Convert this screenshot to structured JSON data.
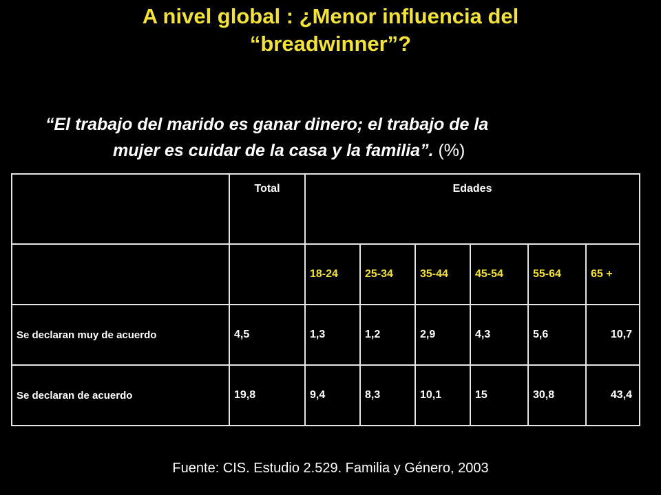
{
  "slide": {
    "title": "A nivel global : ¿Menor influencia del “breadwinner”?",
    "quote": "“El trabajo del marido es ganar dinero; el trabajo de la",
    "quote_line2": "mujer es cuidar de la casa y la familia”.",
    "quote_suffix": " (%)",
    "source": "Fuente: CIS. Estudio 2.529. Familia y Género, 2003"
  },
  "table": {
    "header_total": "Total",
    "header_group": "Edades",
    "age_groups": [
      "18-24",
      "25-34",
      "35-44",
      "45-54",
      "55-64",
      "65 +"
    ],
    "rows": [
      {
        "label": "Se declaran muy de acuerdo",
        "total": "4,5",
        "values": [
          "1,3",
          "1,2",
          "2,9",
          "4,3",
          "5,6",
          "10,7"
        ]
      },
      {
        "label": "Se declaran de acuerdo",
        "total": "19,8",
        "values": [
          "9,4",
          "8,3",
          "10,1",
          "15",
          "30,8",
          "43,4"
        ]
      }
    ],
    "colors": {
      "accent": "#f2e23a",
      "border": "#e6e6e6",
      "text": "#ffffff",
      "background": "#000000"
    }
  }
}
